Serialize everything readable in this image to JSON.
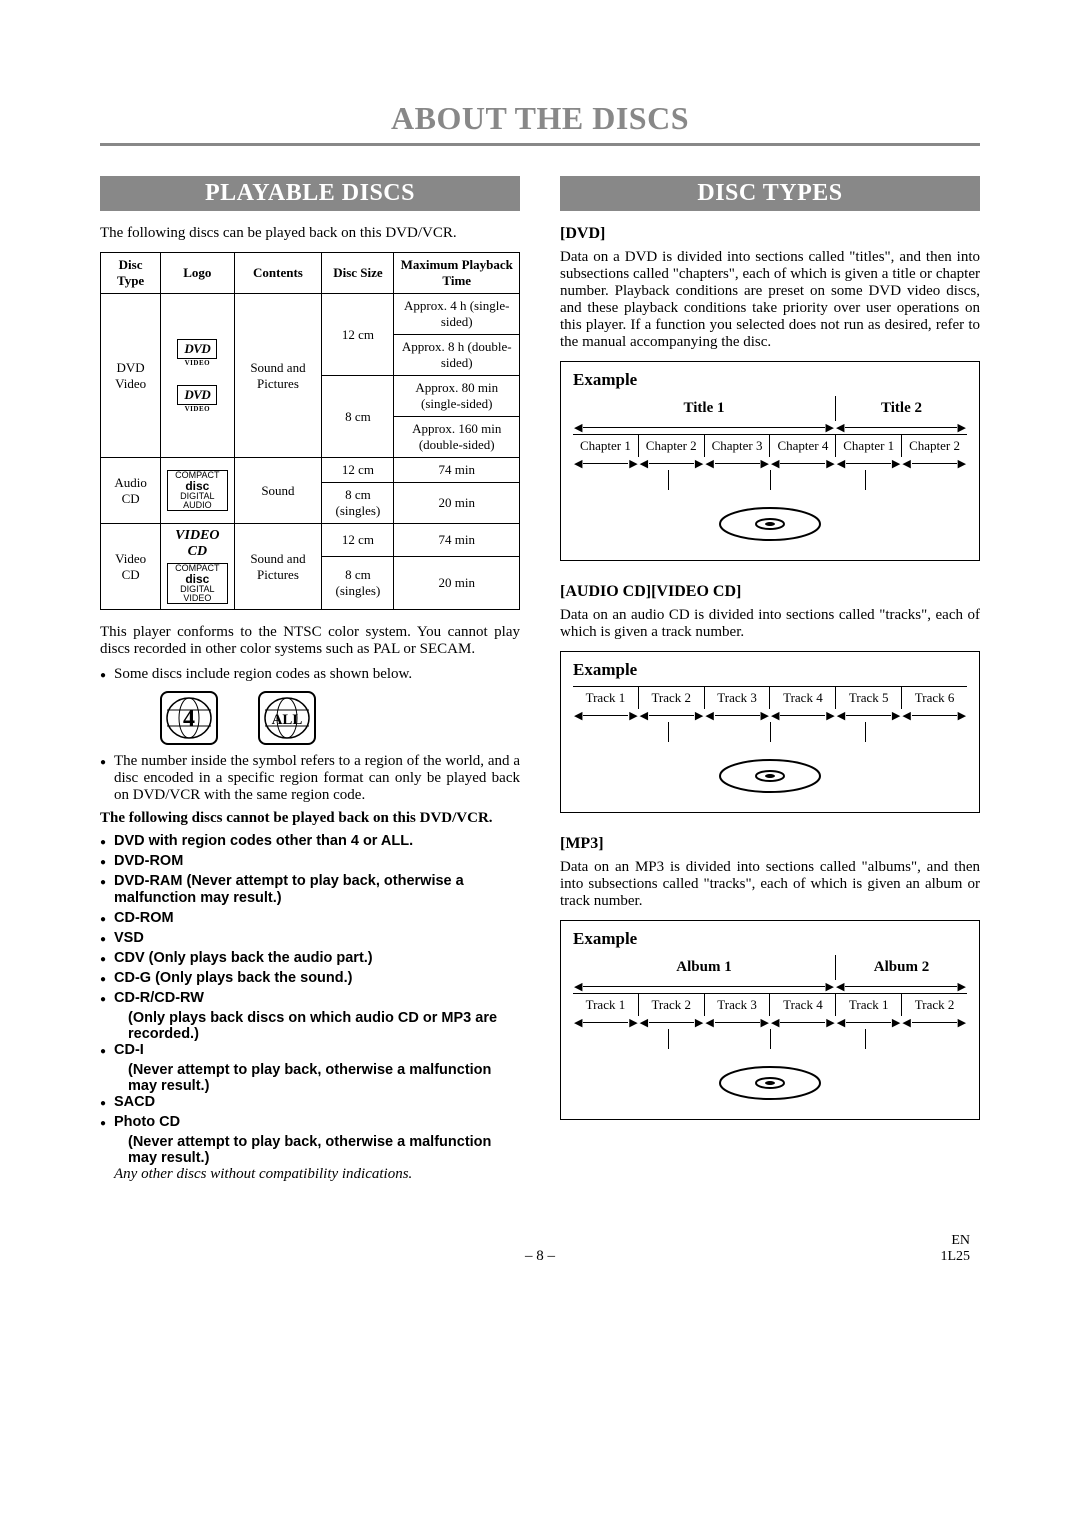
{
  "mainTitle": "ABOUT THE DISCS",
  "left": {
    "banner": "PLAYABLE DISCS",
    "intro": "The following discs can be played back on this DVD/VCR.",
    "table": {
      "headers": [
        "Disc Type",
        "Logo",
        "Contents",
        "Disc Size",
        "Maximum Playback Time"
      ],
      "dvd": {
        "type": "DVD Video",
        "contents": "Sound and Pictures",
        "rows": [
          {
            "size": "12 cm",
            "time1": "Approx. 4 h (single-sided)",
            "time2": "Approx. 8 h (double-sided)"
          },
          {
            "size": "8 cm",
            "time1": "Approx. 80 min (single-sided)",
            "time2": "Approx. 160 min (double-sided)"
          }
        ]
      },
      "audio": {
        "type": "Audio CD",
        "contents": "Sound",
        "rows": [
          {
            "size": "12 cm",
            "time": "74 min"
          },
          {
            "size": "8 cm (singles)",
            "time": "20 min"
          }
        ]
      },
      "video": {
        "type": "Video CD",
        "contents": "Sound and Pictures",
        "rows": [
          {
            "size": "12 cm",
            "time": "74 min"
          },
          {
            "size": "8 cm (singles)",
            "time": "20 min"
          }
        ]
      }
    },
    "ntscPara": "This player conforms to the NTSC color system. You cannot play discs recorded in other color systems such as PAL or SECAM.",
    "bullet1": "Some discs include region codes as shown below.",
    "regionCodes": [
      "4",
      "ALL"
    ],
    "bullet2": "The number inside the symbol refers to a region of the world, and a disc encoded in a specific region format can only be played back on DVD/VCR with the same region code.",
    "cannotPlayHeader": "The following discs cannot be played back on this DVD/VCR.",
    "cannotList": [
      {
        "t": "DVD with region codes other than 4 or ALL."
      },
      {
        "t": "DVD-ROM"
      },
      {
        "t": "DVD-RAM (Never attempt to play back, otherwise a malfunction may result.)"
      },
      {
        "t": "CD-ROM"
      },
      {
        "t": "VSD"
      },
      {
        "t": "CDV (Only plays back the audio part.)"
      },
      {
        "t": "CD-G (Only plays back the sound.)"
      },
      {
        "t": "CD-R/CD-RW",
        "sub": "(Only plays back discs on which audio CD or MP3 are recorded.)"
      },
      {
        "t": "CD-I",
        "sub": "(Never attempt to play back, otherwise a malfunction may result.)"
      },
      {
        "t": "SACD"
      },
      {
        "t": "Photo CD",
        "sub": "(Never attempt to play back, otherwise a malfunction may result.)"
      }
    ],
    "anyOther": "Any other discs without compatibility indications."
  },
  "right": {
    "banner": "DISC TYPES",
    "dvd": {
      "head": "[DVD]",
      "para": "Data on a DVD is divided into sections called \"titles\", and then into subsections called \"chapters\", each of which is given a title or chapter number. Playback conditions are preset on some DVD video discs, and these playback conditions take priority over user operations on this player. If a function you selected does not run as desired, refer to the manual accompanying the disc.",
      "example": {
        "label": "Example",
        "titles": [
          "Title 1",
          "Title 2"
        ],
        "t1Chapters": [
          "Chapter 1",
          "Chapter 2",
          "Chapter 3",
          "Chapter 4"
        ],
        "t2Chapters": [
          "Chapter 1",
          "Chapter 2"
        ]
      }
    },
    "cd": {
      "head": "[AUDIO CD][VIDEO CD]",
      "para": "Data on an audio CD is divided into sections called \"tracks\", each of which is given a track number.",
      "example": {
        "label": "Example",
        "tracks": [
          "Track 1",
          "Track 2",
          "Track 3",
          "Track 4",
          "Track 5",
          "Track 6"
        ]
      }
    },
    "mp3": {
      "head": "[MP3]",
      "para": "Data on an MP3 is divided into sections called \"albums\", and then into subsections called \"tracks\", each of which is given an album or track number.",
      "example": {
        "label": "Example",
        "albums": [
          "Album 1",
          "Album 2"
        ],
        "a1Tracks": [
          "Track 1",
          "Track 2",
          "Track 3",
          "Track 4"
        ],
        "a2Tracks": [
          "Track 1",
          "Track 2"
        ]
      }
    }
  },
  "footer": {
    "page": "– 8 –",
    "code1": "EN",
    "code2": "1L25"
  },
  "colors": {
    "banner_bg": "#888888",
    "banner_fg": "#ffffff",
    "title_color": "#888888",
    "border": "#000000"
  }
}
